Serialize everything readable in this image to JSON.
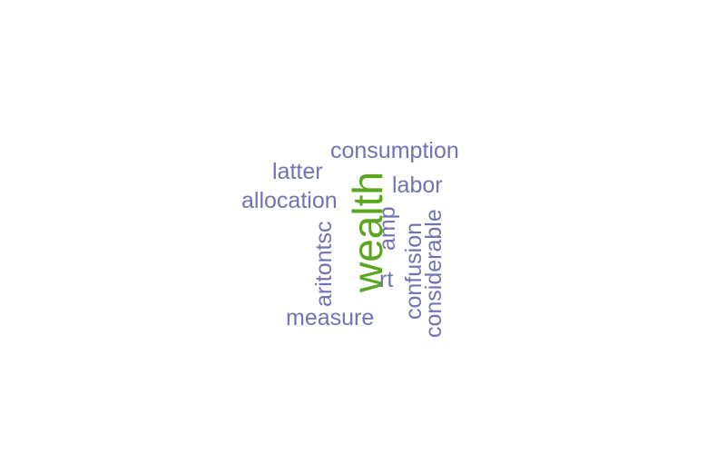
{
  "colors": {
    "primary": "#7272b5",
    "accent": "#5ba51f",
    "background": "#ffffff"
  },
  "words": {
    "consumption": "consumption",
    "latter": "latter",
    "labor": "labor",
    "allocation": "allocation",
    "wealth": "wealth",
    "amp": "amp",
    "aritontsc": "aritontsc",
    "confusion": "confusion",
    "considerable": "considerable",
    "rt": "rt",
    "measure": "measure"
  }
}
